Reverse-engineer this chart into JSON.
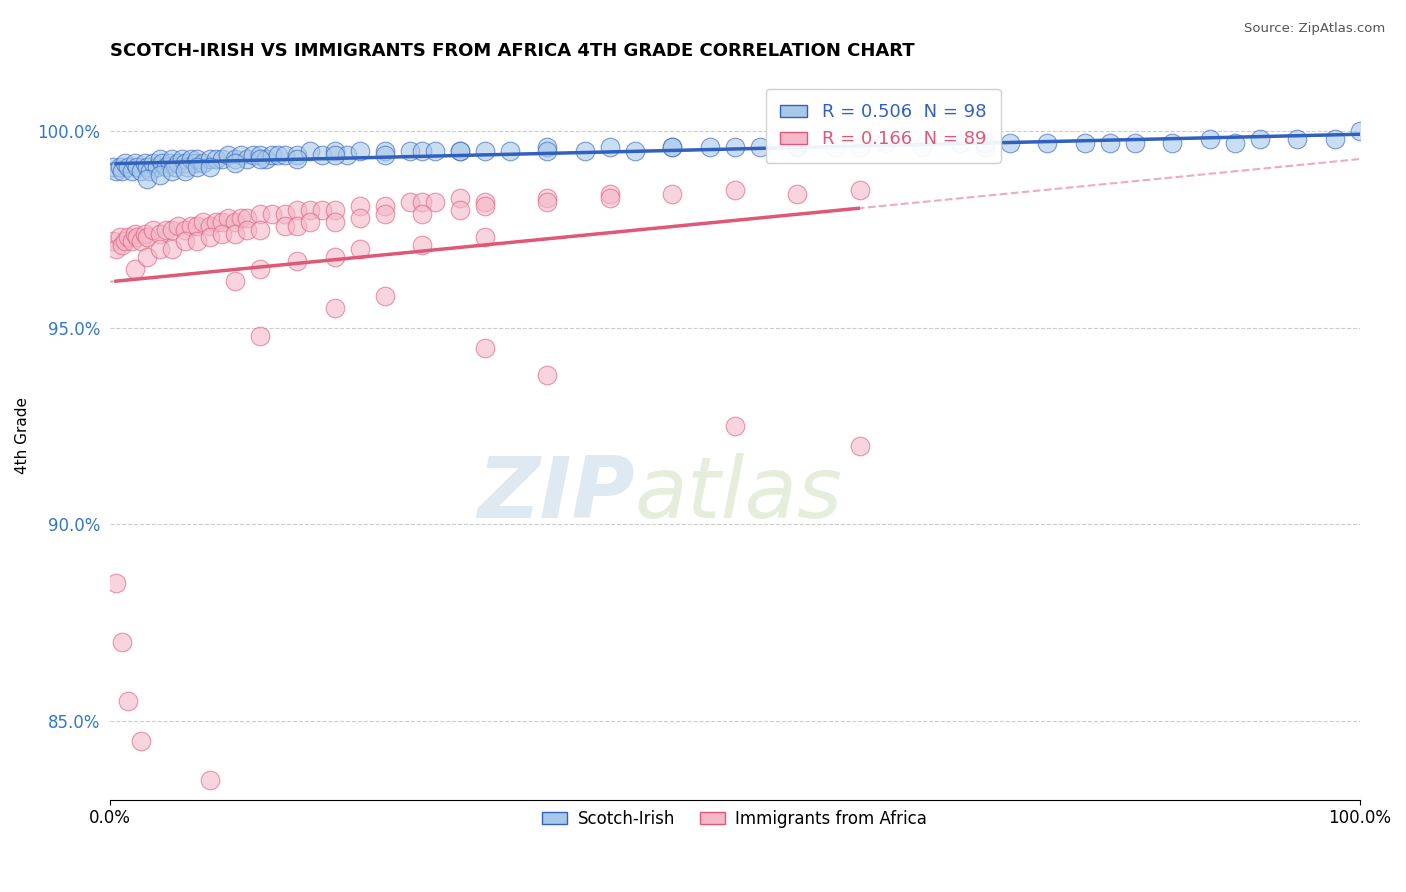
{
  "title": "SCOTCH-IRISH VS IMMIGRANTS FROM AFRICA 4TH GRADE CORRELATION CHART",
  "source": "Source: ZipAtlas.com",
  "ylabel": "4th Grade",
  "r_blue": 0.506,
  "n_blue": 98,
  "r_pink": 0.166,
  "n_pink": 89,
  "blue_color": "#a8c8e8",
  "pink_color": "#f4b8c8",
  "blue_line_color": "#3060c0",
  "pink_line_color": "#e05878",
  "legend_label_blue": "Scotch-Irish",
  "legend_label_pink": "Immigrants from Africa",
  "watermark_zip": "ZIP",
  "watermark_atlas": "atlas",
  "xlim": [
    0.0,
    100.0
  ],
  "ylim": [
    83.0,
    101.5
  ],
  "yticks": [
    85.0,
    90.0,
    95.0,
    100.0
  ],
  "ytick_labels": [
    "85.0%",
    "90.0%",
    "95.0%",
    "100.0%"
  ],
  "xtick_labels": [
    "0.0%",
    "100.0%"
  ],
  "grid_color": "#cccccc",
  "bg_color": "#ffffff",
  "blue_scatter_x": [
    0.3,
    0.5,
    0.8,
    1.0,
    1.2,
    1.5,
    1.8,
    2.0,
    2.2,
    2.5,
    2.8,
    3.0,
    3.2,
    3.5,
    3.8,
    4.0,
    4.2,
    4.5,
    4.8,
    5.0,
    5.2,
    5.5,
    5.8,
    6.0,
    6.2,
    6.5,
    6.8,
    7.0,
    7.5,
    8.0,
    8.5,
    9.0,
    9.5,
    10.0,
    10.5,
    11.0,
    11.5,
    12.0,
    12.5,
    13.0,
    13.5,
    14.0,
    15.0,
    16.0,
    17.0,
    18.0,
    19.0,
    20.0,
    22.0,
    24.0,
    25.0,
    26.0,
    28.0,
    30.0,
    32.0,
    35.0,
    38.0,
    40.0,
    42.0,
    45.0,
    48.0,
    50.0,
    52.0,
    55.0,
    58.0,
    60.0,
    62.0,
    65.0,
    68.0,
    70.0,
    72.0,
    75.0,
    78.0,
    80.0,
    82.0,
    85.0,
    88.0,
    90.0,
    92.0,
    95.0,
    98.0,
    100.0,
    3.0,
    4.0,
    5.0,
    6.0,
    7.0,
    8.0,
    10.0,
    12.0,
    15.0,
    18.0,
    22.0,
    28.0,
    35.0,
    45.0,
    55.0,
    70.0
  ],
  "blue_scatter_y": [
    99.1,
    99.0,
    99.1,
    99.0,
    99.2,
    99.1,
    99.0,
    99.2,
    99.1,
    99.0,
    99.2,
    99.1,
    99.0,
    99.2,
    99.1,
    99.3,
    99.2,
    99.1,
    99.2,
    99.3,
    99.1,
    99.2,
    99.3,
    99.2,
    99.1,
    99.3,
    99.2,
    99.3,
    99.2,
    99.3,
    99.3,
    99.3,
    99.4,
    99.3,
    99.4,
    99.3,
    99.4,
    99.4,
    99.3,
    99.4,
    99.4,
    99.4,
    99.4,
    99.5,
    99.4,
    99.5,
    99.4,
    99.5,
    99.5,
    99.5,
    99.5,
    99.5,
    99.5,
    99.5,
    99.5,
    99.6,
    99.5,
    99.6,
    99.5,
    99.6,
    99.6,
    99.6,
    99.6,
    99.6,
    99.6,
    99.6,
    99.7,
    99.6,
    99.7,
    99.6,
    99.7,
    99.7,
    99.7,
    99.7,
    99.7,
    99.7,
    99.8,
    99.7,
    99.8,
    99.8,
    99.8,
    100.0,
    98.8,
    98.9,
    99.0,
    99.0,
    99.1,
    99.1,
    99.2,
    99.3,
    99.3,
    99.4,
    99.4,
    99.5,
    99.5,
    99.6,
    99.6,
    99.7
  ],
  "pink_scatter_x": [
    0.3,
    0.5,
    0.8,
    1.0,
    1.2,
    1.5,
    1.8,
    2.0,
    2.2,
    2.5,
    2.8,
    3.0,
    3.5,
    4.0,
    4.5,
    5.0,
    5.5,
    6.0,
    6.5,
    7.0,
    7.5,
    8.0,
    8.5,
    9.0,
    9.5,
    10.0,
    10.5,
    11.0,
    12.0,
    13.0,
    14.0,
    15.0,
    16.0,
    17.0,
    18.0,
    20.0,
    22.0,
    24.0,
    25.0,
    26.0,
    28.0,
    30.0,
    35.0,
    40.0,
    45.0,
    50.0,
    55.0,
    60.0,
    2.0,
    3.0,
    4.0,
    5.0,
    6.0,
    7.0,
    8.0,
    9.0,
    10.0,
    11.0,
    12.0,
    14.0,
    15.0,
    16.0,
    18.0,
    20.0,
    22.0,
    25.0,
    28.0,
    30.0,
    35.0,
    40.0,
    10.0,
    12.0,
    15.0,
    18.0,
    20.0,
    25.0,
    30.0,
    18.0,
    22.0,
    12.0,
    30.0,
    35.0,
    50.0,
    60.0,
    0.5,
    1.0,
    1.5,
    2.5,
    8.0
  ],
  "pink_scatter_y": [
    97.2,
    97.0,
    97.3,
    97.1,
    97.2,
    97.3,
    97.2,
    97.4,
    97.3,
    97.2,
    97.4,
    97.3,
    97.5,
    97.4,
    97.5,
    97.5,
    97.6,
    97.5,
    97.6,
    97.6,
    97.7,
    97.6,
    97.7,
    97.7,
    97.8,
    97.7,
    97.8,
    97.8,
    97.9,
    97.9,
    97.9,
    98.0,
    98.0,
    98.0,
    98.0,
    98.1,
    98.1,
    98.2,
    98.2,
    98.2,
    98.3,
    98.2,
    98.3,
    98.4,
    98.4,
    98.5,
    98.4,
    98.5,
    96.5,
    96.8,
    97.0,
    97.0,
    97.2,
    97.2,
    97.3,
    97.4,
    97.4,
    97.5,
    97.5,
    97.6,
    97.6,
    97.7,
    97.7,
    97.8,
    97.9,
    97.9,
    98.0,
    98.1,
    98.2,
    98.3,
    96.2,
    96.5,
    96.7,
    96.8,
    97.0,
    97.1,
    97.3,
    95.5,
    95.8,
    94.8,
    94.5,
    93.8,
    92.5,
    92.0,
    88.5,
    87.0,
    85.5,
    84.5,
    83.5
  ]
}
